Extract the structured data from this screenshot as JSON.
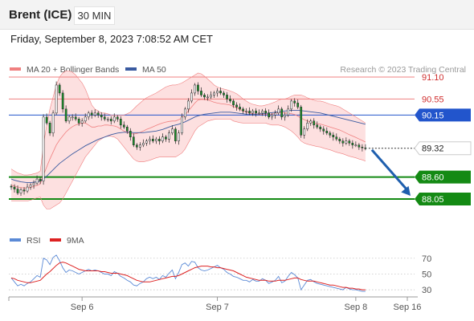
{
  "header": {
    "instrument": "Brent (ICE)",
    "timeframe": "30 MIN",
    "datetime": "Friday, September 8, 2023 7:08:52 AM CET"
  },
  "colors": {
    "bb_line": "#f08080",
    "bb_fill": "#fde0e0",
    "ma50": "#3a5aa0",
    "candle_up": "#ffffff",
    "candle_down": "#1a8f2a",
    "support": "#148a14",
    "resistance": "#f08080",
    "pivot": "#2255cc",
    "current": "#333333",
    "arrow": "#1f5fae",
    "rsi": "#5b8ad6",
    "rsi_ma": "#dd2222",
    "grid": "#bbbbbb",
    "credit": "#999999"
  },
  "chart_data": [
    {
      "type": "line",
      "name": "price",
      "legend": [
        {
          "label": "MA 20 + Bollinger Bands",
          "color": "#f08080"
        },
        {
          "label": "MA 50",
          "color": "#3a5aa0"
        }
      ],
      "credit": "Research © 2023 Trading Central",
      "x_ticks": [
        {
          "label": "Sep 6",
          "index": 22
        },
        {
          "label": "Sep 7",
          "index": 64
        },
        {
          "label": "Sep 8",
          "index": 107
        },
        {
          "label": "Sep 16",
          "index": 123
        }
      ],
      "y_range": [
        87.85,
        91.3
      ],
      "levels": [
        {
          "label": "91.10",
          "value": 91.1,
          "kind": "resistance"
        },
        {
          "label": "90.55",
          "value": 90.55,
          "kind": "resistance"
        },
        {
          "label": "90.15",
          "value": 90.15,
          "kind": "pivot"
        },
        {
          "label": "89.32",
          "value": 89.32,
          "kind": "current"
        },
        {
          "label": "88.60",
          "value": 88.6,
          "kind": "support"
        },
        {
          "label": "88.05",
          "value": 88.05,
          "kind": "support"
        }
      ],
      "forecast": {
        "from_index": 111,
        "from_value": 89.32,
        "to_index": 124,
        "to_value": 88.05
      },
      "close": [
        88.35,
        88.3,
        88.2,
        88.28,
        88.25,
        88.35,
        88.4,
        88.45,
        88.55,
        88.5,
        90.1,
        89.95,
        89.7,
        90.2,
        90.9,
        90.7,
        90.3,
        90.0,
        90.1,
        90.1,
        90.05,
        89.95,
        90.0,
        90.1,
        90.2,
        90.15,
        90.2,
        90.15,
        90.1,
        90.05,
        90.05,
        90.0,
        90.1,
        90.05,
        89.9,
        89.85,
        89.75,
        89.6,
        89.4,
        89.35,
        89.4,
        89.45,
        89.5,
        89.55,
        89.5,
        89.55,
        89.5,
        89.6,
        89.55,
        89.7,
        89.8,
        89.5,
        89.7,
        90.1,
        90.3,
        90.5,
        90.7,
        90.9,
        90.75,
        90.65,
        90.6,
        90.6,
        90.65,
        90.7,
        90.75,
        90.7,
        90.65,
        90.55,
        90.5,
        90.4,
        90.35,
        90.3,
        90.25,
        90.25,
        90.2,
        90.25,
        90.2,
        90.2,
        90.25,
        90.2,
        90.1,
        90.15,
        90.2,
        90.3,
        90.1,
        90.15,
        90.3,
        90.5,
        90.45,
        90.35,
        89.65,
        89.8,
        89.95,
        90.0,
        89.9,
        89.85,
        89.8,
        89.75,
        89.7,
        89.65,
        89.6,
        89.55,
        89.5,
        89.45,
        89.5,
        89.45,
        89.4,
        89.4,
        89.35,
        89.33,
        89.32
      ],
      "bb_upper": [
        88.8,
        88.75,
        88.7,
        88.68,
        88.65,
        88.65,
        88.66,
        88.68,
        88.7,
        88.75,
        89.4,
        89.9,
        90.3,
        90.6,
        90.9,
        91.1,
        91.2,
        91.25,
        91.25,
        91.22,
        91.15,
        91.05,
        90.95,
        90.8,
        90.6,
        90.4,
        90.3,
        90.25,
        90.2,
        90.2,
        90.18,
        90.15,
        90.15,
        90.15,
        90.15,
        90.15,
        90.18,
        90.22,
        90.3,
        90.38,
        90.45,
        90.52,
        90.58,
        90.62,
        90.66,
        90.7,
        90.75,
        90.8,
        90.85,
        90.88,
        90.9,
        90.9,
        90.92,
        90.95,
        91.0,
        91.05,
        91.1,
        91.15,
        91.2,
        91.18,
        91.12,
        91.05,
        90.98,
        90.9,
        90.85,
        90.82,
        90.8,
        90.78,
        90.75,
        90.72,
        90.68,
        90.62,
        90.55,
        90.5,
        90.45,
        90.42,
        90.4,
        90.38,
        90.38,
        90.4,
        90.42,
        90.45,
        90.48,
        90.52,
        90.55,
        90.55,
        90.58,
        90.62,
        90.65,
        90.65,
        90.65,
        90.62,
        90.58,
        90.55,
        90.52,
        90.5,
        90.5,
        90.48,
        90.45,
        90.42,
        90.4,
        90.38,
        90.35,
        90.3,
        90.25,
        90.2,
        90.15,
        90.1,
        90.05,
        90.0,
        89.95
      ],
      "bb_lower": [
        88.0,
        88.0,
        88.0,
        88.0,
        88.0,
        88.0,
        88.02,
        88.05,
        88.08,
        88.1,
        87.9,
        87.8,
        87.8,
        87.85,
        87.9,
        87.95,
        88.05,
        88.2,
        88.35,
        88.5,
        88.65,
        88.8,
        88.95,
        89.1,
        89.2,
        89.3,
        89.4,
        89.5,
        89.55,
        89.6,
        89.62,
        89.62,
        89.6,
        89.55,
        89.45,
        89.35,
        89.25,
        89.15,
        89.05,
        89.0,
        88.98,
        88.98,
        89.0,
        89.02,
        89.05,
        89.08,
        89.1,
        89.1,
        89.1,
        89.1,
        89.1,
        89.1,
        89.15,
        89.2,
        89.3,
        89.45,
        89.6,
        89.75,
        89.85,
        89.9,
        89.95,
        90.0,
        90.02,
        90.04,
        90.05,
        90.05,
        90.05,
        90.05,
        90.05,
        90.0,
        89.98,
        89.96,
        89.95,
        89.95,
        89.95,
        89.95,
        89.95,
        89.95,
        89.95,
        89.95,
        89.92,
        89.9,
        89.9,
        89.9,
        89.88,
        89.85,
        89.8,
        89.75,
        89.68,
        89.6,
        89.5,
        89.45,
        89.42,
        89.4,
        89.38,
        89.36,
        89.35,
        89.32,
        89.3,
        89.28,
        89.25,
        89.22,
        89.2,
        89.18,
        89.15,
        89.12,
        89.1,
        89.08,
        89.05,
        89.03,
        89.0
      ],
      "ma50": [
        88.55,
        88.52,
        88.5,
        88.48,
        88.47,
        88.46,
        88.46,
        88.47,
        88.48,
        88.5,
        88.55,
        88.62,
        88.7,
        88.78,
        88.86,
        88.94,
        89.0,
        89.06,
        89.12,
        89.18,
        89.23,
        89.28,
        89.33,
        89.38,
        89.42,
        89.46,
        89.5,
        89.54,
        89.57,
        89.6,
        89.63,
        89.66,
        89.68,
        89.7,
        89.71,
        89.72,
        89.72,
        89.72,
        89.71,
        89.71,
        89.71,
        89.71,
        89.72,
        89.73,
        89.74,
        89.75,
        89.77,
        89.79,
        89.82,
        89.85,
        89.88,
        89.9,
        89.92,
        89.95,
        89.98,
        90.02,
        90.06,
        90.1,
        90.13,
        90.15,
        90.17,
        90.18,
        90.19,
        90.2,
        90.21,
        90.22,
        90.22,
        90.22,
        90.22,
        90.21,
        90.2,
        90.19,
        90.18,
        90.17,
        90.17,
        90.17,
        90.17,
        90.18,
        90.18,
        90.19,
        90.2,
        90.21,
        90.22,
        90.23,
        90.24,
        90.25,
        90.26,
        90.27,
        90.27,
        90.27,
        90.26,
        90.25,
        90.24,
        90.23,
        90.22,
        90.21,
        90.2,
        90.18,
        90.16,
        90.14,
        90.12,
        90.1,
        90.08,
        90.06,
        90.04,
        90.02,
        90.0,
        89.98,
        89.96,
        89.94,
        89.92
      ]
    },
    {
      "type": "line",
      "name": "rsi",
      "legend": [
        {
          "label": "RSI",
          "color": "#5b8ad6"
        },
        {
          "label": "9MA",
          "color": "#dd2222"
        }
      ],
      "y_range": [
        25,
        80
      ],
      "y_ticks": [
        {
          "label": "70",
          "value": 70
        },
        {
          "label": "50",
          "value": 50
        },
        {
          "label": "30",
          "value": 30
        }
      ],
      "rsi": [
        45,
        40,
        35,
        37,
        35,
        38,
        40,
        44,
        48,
        46,
        70,
        68,
        62,
        71,
        74,
        67,
        58,
        52,
        55,
        54,
        52,
        50,
        52,
        54,
        56,
        54,
        55,
        54,
        52,
        50,
        50,
        48,
        53,
        51,
        47,
        45,
        42,
        40,
        36,
        35,
        38,
        40,
        44,
        46,
        44,
        46,
        43,
        48,
        46,
        51,
        55,
        44,
        52,
        62,
        64,
        60,
        66,
        65,
        58,
        55,
        54,
        55,
        57,
        59,
        61,
        58,
        56,
        52,
        50,
        47,
        46,
        44,
        42,
        42,
        40,
        43,
        41,
        41,
        44,
        42,
        38,
        40,
        42,
        47,
        39,
        41,
        47,
        52,
        49,
        45,
        30,
        36,
        42,
        43,
        40,
        38,
        37,
        36,
        35,
        34,
        33,
        32,
        31,
        30,
        33,
        31,
        30,
        30,
        29,
        28,
        28
      ],
      "rsi_ma": [
        45,
        44,
        42,
        41,
        40,
        39,
        39,
        40,
        41,
        42,
        46,
        50,
        53,
        57,
        61,
        64,
        65,
        64,
        62,
        60,
        58,
        56,
        55,
        54,
        54,
        54,
        54,
        54,
        53,
        53,
        52,
        51,
        51,
        51,
        50,
        49,
        48,
        46,
        44,
        42,
        41,
        40,
        40,
        40,
        41,
        42,
        43,
        44,
        45,
        46,
        47,
        47,
        48,
        50,
        52,
        54,
        56,
        58,
        59,
        60,
        60,
        60,
        59,
        59,
        58,
        58,
        57,
        56,
        55,
        54,
        52,
        50,
        48,
        46,
        45,
        44,
        43,
        42,
        42,
        42,
        41,
        41,
        41,
        42,
        42,
        42,
        43,
        44,
        45,
        45,
        43,
        42,
        41,
        41,
        41,
        40,
        39,
        38,
        37,
        36,
        36,
        35,
        34,
        33,
        33,
        32,
        32,
        31,
        31,
        30,
        30
      ]
    }
  ]
}
